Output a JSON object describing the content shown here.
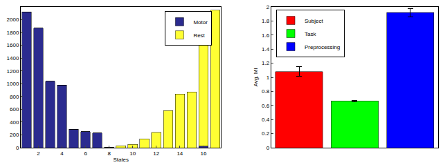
{
  "chart_data": [
    {
      "type": "bar",
      "stacked": true,
      "x": [
        1,
        2,
        3,
        4,
        5,
        6,
        7,
        8,
        9,
        10,
        11,
        12,
        13,
        14,
        15,
        16,
        17
      ],
      "xlabel": "States",
      "series": [
        {
          "name": "Motor",
          "color": "#2b2b8f",
          "values": [
            2120,
            1870,
            1040,
            980,
            290,
            250,
            230,
            8,
            0,
            0,
            0,
            0,
            0,
            0,
            0,
            25,
            0
          ]
        },
        {
          "name": "Rest",
          "color": "#ffff33",
          "values": [
            0,
            0,
            0,
            0,
            0,
            0,
            0,
            0,
            30,
            50,
            140,
            240,
            580,
            840,
            870,
            1950,
            2150
          ]
        }
      ],
      "xlim": [
        0.5,
        17.5
      ],
      "xticks": [
        2,
        4,
        6,
        8,
        10,
        12,
        14,
        16
      ],
      "ylim": [
        0,
        2200
      ],
      "yticks": [
        0,
        200,
        400,
        600,
        800,
        1000,
        1200,
        1400,
        1600,
        1800,
        2000
      ],
      "legend": "top"
    },
    {
      "type": "bar",
      "categories": [
        "Subject",
        "Task",
        "Preprocessing"
      ],
      "values": [
        1.08,
        0.665,
        1.92
      ],
      "errors": [
        0.07,
        0.01,
        0.06
      ],
      "colors": [
        "#ff0000",
        "#00ff00",
        "#0000ff"
      ],
      "ylabel": "Avg. MI",
      "ylim": [
        0,
        2
      ],
      "yticks": [
        0,
        0.2,
        0.4,
        0.6,
        0.8,
        1,
        1.2,
        1.4,
        1.6,
        1.8,
        2
      ],
      "legend": "upper left",
      "tick_labels": "y"
    }
  ]
}
